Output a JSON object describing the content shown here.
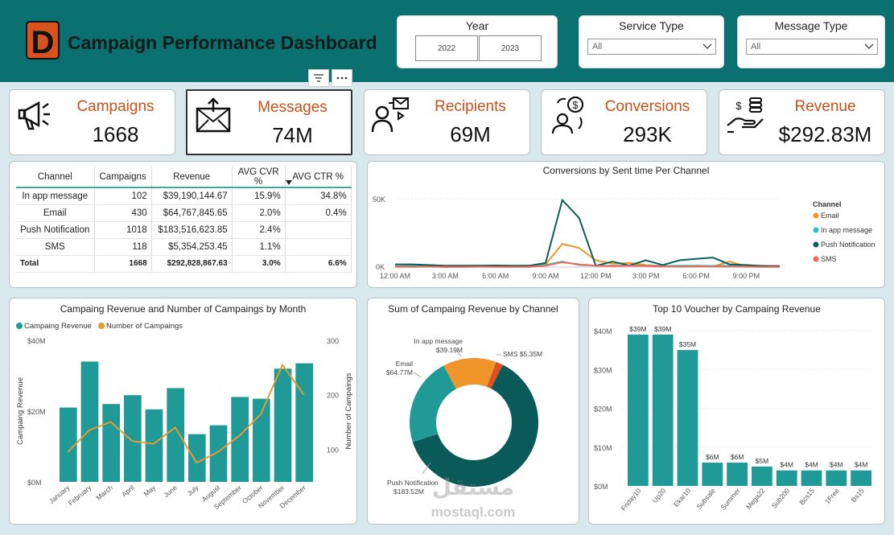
{
  "header": {
    "logo_letter": "D",
    "title": "Campaign Performance Dashboard"
  },
  "slicers": {
    "year": {
      "title": "Year",
      "options": [
        "2022",
        "2023"
      ]
    },
    "service_type": {
      "title": "Service Type",
      "value": "All"
    },
    "message_type": {
      "title": "Message Type",
      "value": "All"
    }
  },
  "kpis": [
    {
      "label": "Campaigns",
      "value": "1668",
      "icon": "megaphone-icon"
    },
    {
      "label": "Messages",
      "value": "74M",
      "icon": "envelope-icon"
    },
    {
      "label": "Recipients",
      "value": "69M",
      "icon": "recipient-icon"
    },
    {
      "label": "Conversions",
      "value": "293K",
      "icon": "conversion-icon"
    },
    {
      "label": "Revenue",
      "value": "$292.83M",
      "icon": "money-hand-icon"
    }
  ],
  "channel_table": {
    "headers": [
      "Channel",
      "Campaigns",
      "Revenue",
      "AVG CVR %",
      "AVG CTR %"
    ],
    "rows": [
      [
        "In app message",
        "102",
        "$39,190,144.67",
        "15.9%",
        "34.8%"
      ],
      [
        "Email",
        "430",
        "$64,767,845.65",
        "2.0%",
        "0.4%"
      ],
      [
        "Push Notification",
        "1018",
        "$183,516,623.85",
        "2.4%",
        ""
      ],
      [
        "SMS",
        "118",
        "$5,354,253.45",
        "1.1%",
        ""
      ]
    ],
    "total": [
      "Total",
      "1668",
      "$292,828,867.63",
      "3.0%",
      "6.6%"
    ]
  },
  "chart_data": [
    {
      "type": "line",
      "title": "Conversions by Sent time Per Channel",
      "legend_title": "Channel",
      "x_ticks": [
        "12:00 AM",
        "3:00 AM",
        "6:00 AM",
        "9:00 AM",
        "12:00 PM",
        "3:00 PM",
        "6:00 PM",
        "9:00 PM"
      ],
      "y_ticks": [
        "50K",
        "0K"
      ],
      "ylim": [
        0,
        50000
      ],
      "x": [
        0,
        1,
        2,
        3,
        4,
        5,
        6,
        7,
        8,
        9,
        10,
        11,
        12,
        13,
        14,
        15,
        16,
        17,
        18,
        19,
        20,
        21,
        22,
        23
      ],
      "series": [
        {
          "name": "Email",
          "color": "#f0952a",
          "values": [
            200,
            300,
            400,
            200,
            200,
            300,
            300,
            300,
            400,
            2000,
            17000,
            14000,
            5000,
            2500,
            3000,
            1500,
            800,
            500,
            1000,
            500,
            4000,
            500,
            1000,
            200
          ]
        },
        {
          "name": "In app message",
          "color": "#2cc3b9",
          "values": [
            600,
            800,
            1200,
            900,
            900,
            1000,
            900,
            800,
            1000,
            1500,
            4000,
            1500,
            1000,
            1000,
            1200,
            1000,
            800,
            1000,
            1000,
            900,
            1100,
            800,
            600,
            500
          ]
        },
        {
          "name": "Push Notification",
          "color": "#0b5f5b",
          "values": [
            2000,
            2000,
            1500,
            1000,
            1000,
            1000,
            1200,
            1000,
            1000,
            3000,
            49000,
            36000,
            1000,
            4000,
            1200,
            5000,
            1500,
            5000,
            6000,
            7000,
            2000,
            1500,
            800,
            800
          ]
        },
        {
          "name": "SMS",
          "color": "#f0675e",
          "values": [
            300,
            200,
            300,
            200,
            200,
            300,
            200,
            200,
            200,
            1000,
            3500,
            2000,
            1000,
            800,
            1000,
            800,
            500,
            300,
            400,
            500,
            300,
            300,
            200,
            200
          ]
        }
      ]
    },
    {
      "type": "bar",
      "title": "Campaing Revenue and Number of Campaings by Month",
      "categories": [
        "January",
        "February",
        "March",
        "April",
        "May",
        "June",
        "July",
        "August",
        "September",
        "October",
        "November",
        "December"
      ],
      "series": [
        {
          "name": "Campaing Revenue",
          "color": "#1f9a96",
          "values": [
            21,
            34,
            22,
            24.5,
            20.5,
            26.5,
            13.5,
            16,
            24,
            23.5,
            32,
            33.5
          ]
        },
        {
          "name": "Number of Campaings",
          "color": "#e59a35",
          "values": [
            95,
            135,
            150,
            115,
            110,
            140,
            75,
            95,
            125,
            165,
            255,
            200
          ]
        }
      ],
      "ylabel": "Campaing Revenue",
      "y2label": "Number of Campaings",
      "y_ticks": [
        "$40M",
        "$20M",
        "$0M"
      ],
      "y2_ticks": [
        "300",
        "200",
        "100"
      ],
      "ylim": [
        0,
        40
      ],
      "y2lim": [
        40,
        300
      ]
    },
    {
      "type": "pie",
      "title": "Sum of Campaing Revenue by Channel",
      "slices": [
        {
          "name": "SMS",
          "value": 5.35,
          "label": "SMS $5.35M",
          "color": "#d9531e"
        },
        {
          "name": "Push Notification",
          "value": 183.52,
          "label": "Push Notification\n$183.52M",
          "color": "#0b5a5a"
        },
        {
          "name": "Email",
          "value": 64.77,
          "label": "Email\n$64.77M",
          "color": "#1f9a96"
        },
        {
          "name": "In app message",
          "value": 39.19,
          "label": "In app message\n$39.19M",
          "color": "#f0952a"
        }
      ]
    },
    {
      "type": "bar",
      "title": "Top 10 Voucher by Campaing Revenue",
      "categories": [
        "Friday10",
        "Up20",
        "Ekar10",
        "Subsale",
        "Summer",
        "Mega22",
        "Sub200",
        "Bcs15",
        "1Free",
        "Bs15"
      ],
      "values": [
        39,
        39,
        35,
        6,
        6,
        5,
        4,
        4,
        4,
        4
      ],
      "data_labels": [
        "$39M",
        "$39M",
        "$35M",
        "$6M",
        "$6M",
        "$5M",
        "$4M",
        "$4M",
        "$4M",
        "$4M"
      ],
      "y_ticks": [
        "$40M",
        "$30M",
        "$20M",
        "$10M",
        "$0M"
      ],
      "ylim": [
        0,
        40
      ],
      "color": "#1f9a96"
    }
  ],
  "watermark": {
    "ar": "مستقل",
    "latin": "mostaql.com"
  }
}
